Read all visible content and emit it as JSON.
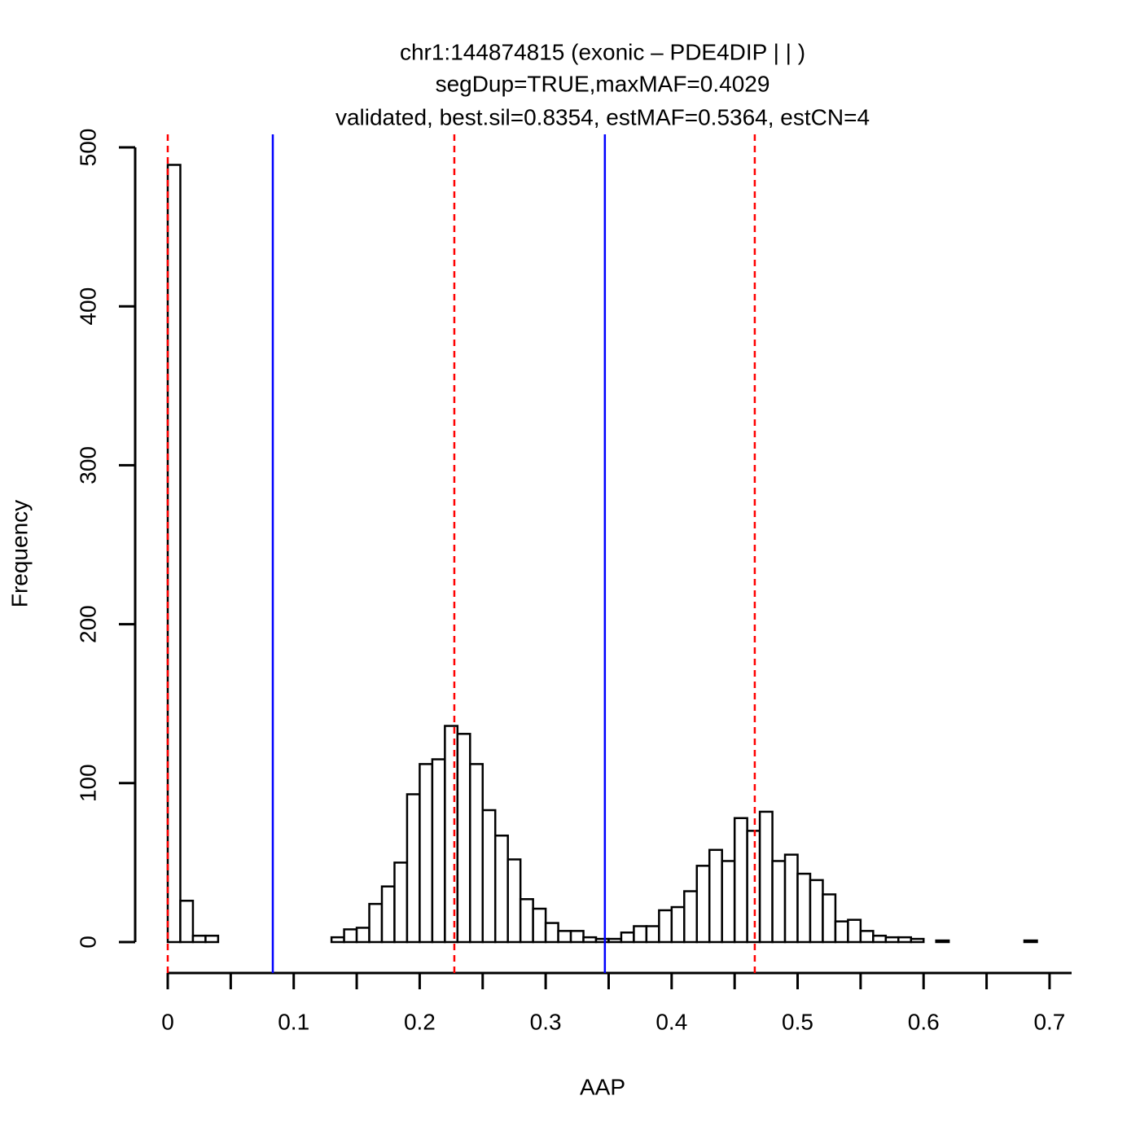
{
  "chart_data": {
    "type": "histogram",
    "title": [
      "chr1:144874815 (exonic – PDE4DIP | | )",
      "segDup=TRUE,maxMAF=0.4029",
      "validated, best.sil=0.8354, estMAF=0.5364, estCN=4"
    ],
    "xlabel": "AAP",
    "ylabel": "Frequency",
    "bins": [
      0,
      0.01,
      0.02,
      0.03,
      0.04,
      0.05,
      0.06,
      0.07,
      0.08,
      0.09,
      0.1,
      0.11,
      0.12,
      0.13,
      0.14,
      0.15,
      0.16,
      0.17,
      0.18,
      0.19,
      0.2,
      0.21,
      0.22,
      0.23,
      0.24,
      0.25,
      0.26,
      0.27,
      0.28,
      0.29,
      0.3,
      0.31,
      0.32,
      0.33,
      0.34,
      0.35,
      0.36,
      0.37,
      0.38,
      0.39,
      0.4,
      0.41,
      0.42,
      0.43,
      0.44,
      0.45,
      0.46,
      0.47,
      0.48,
      0.49,
      0.5,
      0.51,
      0.52,
      0.53,
      0.54,
      0.55,
      0.56,
      0.57,
      0.58,
      0.59,
      0.6,
      0.61,
      0.62,
      0.63,
      0.64,
      0.65,
      0.66,
      0.67,
      0.68,
      0.69
    ],
    "values": [
      489,
      26,
      4,
      4,
      0,
      0,
      0,
      0,
      0,
      0,
      0,
      0,
      0,
      3,
      8,
      9,
      24,
      35,
      50,
      93,
      112,
      115,
      136,
      131,
      112,
      83,
      67,
      52,
      27,
      21,
      12,
      7,
      7,
      3,
      2,
      2,
      6,
      10,
      10,
      20,
      22,
      32,
      48,
      58,
      51,
      78,
      70,
      82,
      51,
      55,
      43,
      39,
      30,
      13,
      14,
      7,
      4,
      3,
      3,
      2,
      0,
      1,
      0,
      0,
      0,
      0,
      0,
      0,
      1
    ],
    "color": "#ffffff",
    "edgecolor": "#000000",
    "xlim": [
      0,
      0.7175
    ],
    "ylim": [
      0,
      500
    ],
    "xticks": [
      0,
      0.1,
      0.2,
      0.3,
      0.4,
      0.5,
      0.6,
      0.7
    ],
    "xminorticks": [
      0.05,
      0.15,
      0.25,
      0.35,
      0.45,
      0.55,
      0.65
    ],
    "yticks": [
      0,
      100,
      200,
      300,
      400,
      500
    ],
    "vlines": [
      {
        "value": 0.0834,
        "color": "#0000ff",
        "dashed": false
      },
      {
        "value": 0.347,
        "color": "#0000ff",
        "dashed": false
      },
      {
        "value": 0,
        "color": "#ff0000",
        "dashed": true
      },
      {
        "value": 0.2275,
        "color": "#ff0000",
        "dashed": true
      },
      {
        "value": 0.466,
        "color": "#ff0000",
        "dashed": true
      }
    ]
  }
}
